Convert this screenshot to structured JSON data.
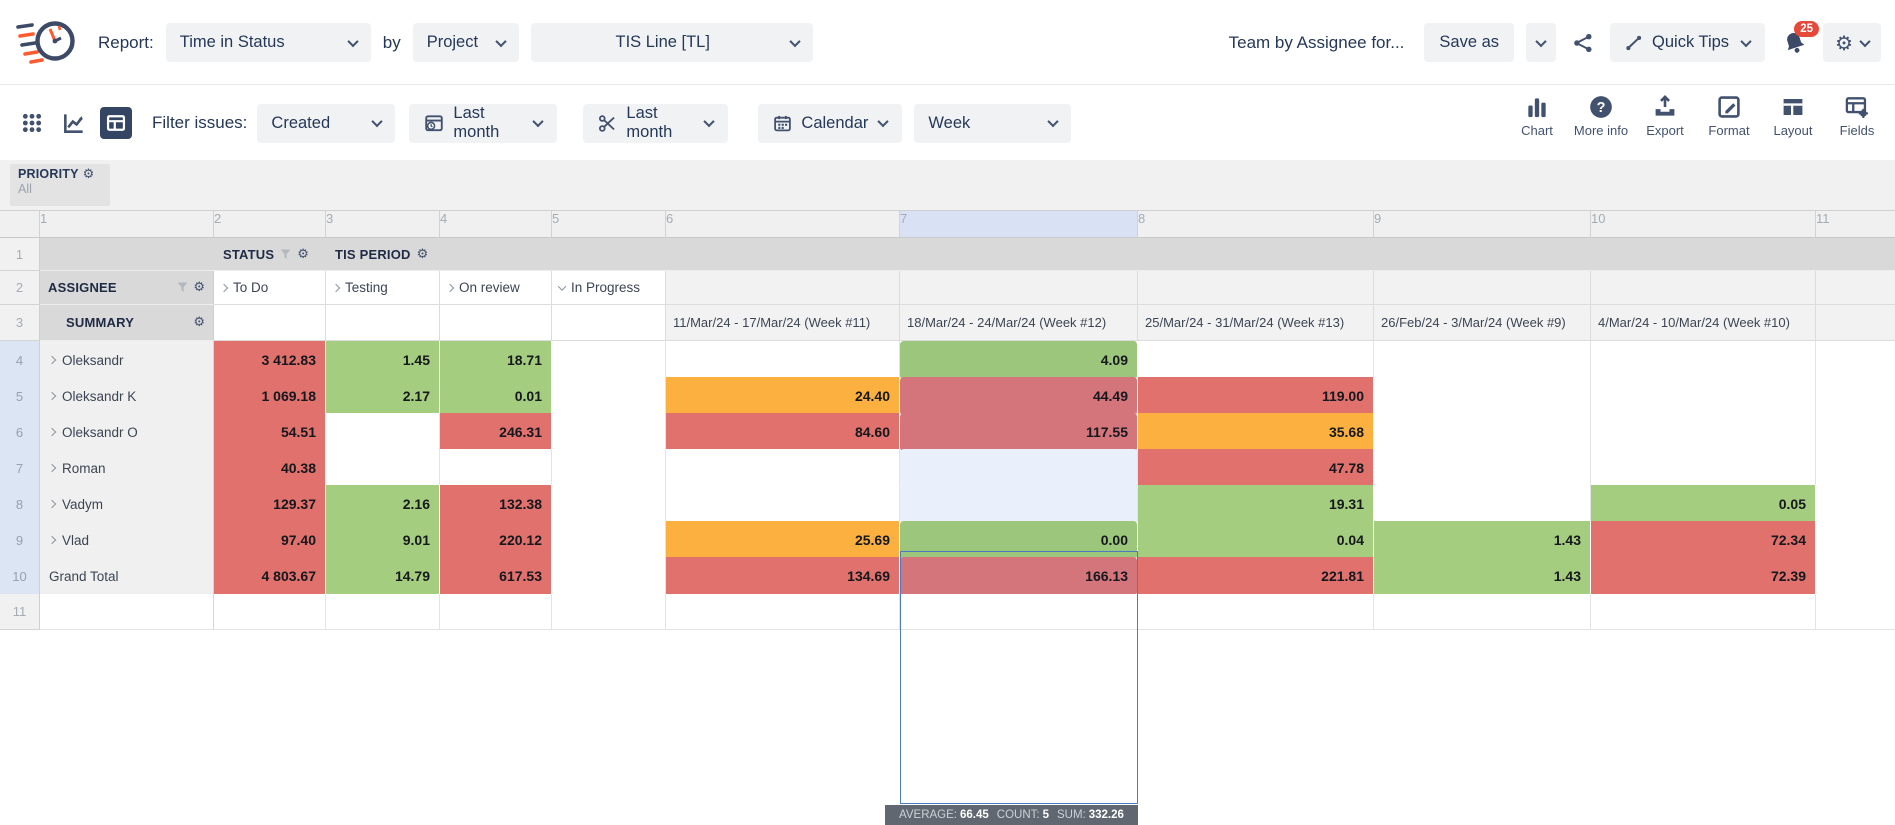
{
  "header": {
    "report_label": "Report:",
    "report_type": "Time in Status",
    "by_label": "by",
    "group_by": "Project",
    "project": "TIS Line [TL]",
    "report_title": "Team by Assignee for...",
    "save_as_label": "Save as",
    "quick_tips_label": "Quick Tips",
    "notification_count": "25"
  },
  "toolbar": {
    "filter_issues_label": "Filter issues:",
    "issue_date_field": "Created",
    "date_range": "Last month",
    "trim_range": "Last month",
    "calendar_label": "Calendar",
    "period": "Week",
    "actions": [
      {
        "label": "Chart"
      },
      {
        "label": "More info"
      },
      {
        "label": "Export"
      },
      {
        "label": "Format"
      },
      {
        "label": "Layout"
      },
      {
        "label": "Fields"
      }
    ]
  },
  "filters_panel": {
    "field": "PRIORITY",
    "value": "All"
  },
  "grid": {
    "column_numbers": [
      "1",
      "2",
      "3",
      "4",
      "5",
      "6",
      "7",
      "8",
      "9",
      "10",
      "11"
    ],
    "selected_column_index": 6,
    "header_rows": {
      "r1_num": "1",
      "status_label": "STATUS",
      "tis_period_label": "TIS PERIOD",
      "r2_num": "2",
      "assignee_label": "ASSIGNEE",
      "statuses": [
        "To Do",
        "Testing",
        "On review",
        "In Progress"
      ],
      "r3_num": "3",
      "summary_label": "SUMMARY",
      "periods": [
        "11/Mar/24 - 17/Mar/24 (Week #11)",
        "18/Mar/24 - 24/Mar/24 (Week #12)",
        "25/Mar/24 - 31/Mar/24 (Week #13)",
        "26/Feb/24 - 3/Mar/24 (Week #9)",
        "4/Mar/24 - 10/Mar/24 (Week #10)"
      ]
    },
    "rows": [
      {
        "num": "4",
        "name": "Oleksandr",
        "expandable": true,
        "hl": true,
        "cells": [
          [
            "3 412.83",
            "red"
          ],
          [
            "1.45",
            "green"
          ],
          [
            "18.71",
            "green"
          ],
          [
            "",
            ""
          ],
          [
            "",
            ""
          ],
          [
            "4.09",
            "green sel"
          ],
          [
            "",
            ""
          ],
          [
            "",
            ""
          ],
          [
            "",
            ""
          ]
        ]
      },
      {
        "num": "5",
        "name": "Oleksandr K",
        "expandable": true,
        "hl": true,
        "cells": [
          [
            "1 069.18",
            "red"
          ],
          [
            "2.17",
            "green"
          ],
          [
            "0.01",
            "green"
          ],
          [
            "",
            ""
          ],
          [
            "24.40",
            "orange"
          ],
          [
            "44.49",
            "red sel"
          ],
          [
            "119.00",
            "red"
          ],
          [
            "",
            ""
          ],
          [
            "",
            ""
          ]
        ]
      },
      {
        "num": "6",
        "name": "Oleksandr O",
        "expandable": true,
        "hl": true,
        "cells": [
          [
            "54.51",
            "red"
          ],
          [
            "",
            ""
          ],
          [
            "246.31",
            "red"
          ],
          [
            "",
            ""
          ],
          [
            "84.60",
            "red"
          ],
          [
            "117.55",
            "red sel"
          ],
          [
            "35.68",
            "orange"
          ],
          [
            "",
            ""
          ],
          [
            "",
            ""
          ]
        ]
      },
      {
        "num": "7",
        "name": "Roman",
        "expandable": true,
        "hl": true,
        "cells": [
          [
            "40.38",
            "red"
          ],
          [
            "",
            ""
          ],
          [
            "",
            ""
          ],
          [
            "",
            ""
          ],
          [
            "",
            ""
          ],
          [
            "",
            "sel"
          ],
          [
            "47.78",
            "red"
          ],
          [
            "",
            ""
          ],
          [
            "",
            ""
          ]
        ]
      },
      {
        "num": "8",
        "name": "Vadym",
        "expandable": true,
        "hl": true,
        "cells": [
          [
            "129.37",
            "red"
          ],
          [
            "2.16",
            "green"
          ],
          [
            "132.38",
            "red"
          ],
          [
            "",
            ""
          ],
          [
            "",
            ""
          ],
          [
            "",
            "sel"
          ],
          [
            "19.31",
            "green"
          ],
          [
            "",
            ""
          ],
          [
            "0.05",
            "green"
          ]
        ]
      },
      {
        "num": "9",
        "name": "Vlad",
        "expandable": true,
        "hl": true,
        "cells": [
          [
            "97.40",
            "red"
          ],
          [
            "9.01",
            "green"
          ],
          [
            "220.12",
            "red"
          ],
          [
            "",
            ""
          ],
          [
            "25.69",
            "orange"
          ],
          [
            "0.00",
            "green sel"
          ],
          [
            "0.04",
            "green"
          ],
          [
            "1.43",
            "green"
          ],
          [
            "72.34",
            "red"
          ]
        ]
      },
      {
        "num": "10",
        "name": "Grand Total",
        "expandable": false,
        "hl": true,
        "cells": [
          [
            "4 803.67",
            "red"
          ],
          [
            "14.79",
            "green"
          ],
          [
            "617.53",
            "red"
          ],
          [
            "",
            ""
          ],
          [
            "134.69",
            "red"
          ],
          [
            "166.13",
            "red sel"
          ],
          [
            "221.81",
            "red"
          ],
          [
            "1.43",
            "green"
          ],
          [
            "72.39",
            "red"
          ]
        ]
      },
      {
        "num": "11",
        "name": "",
        "expandable": false,
        "hl": false,
        "cells": [
          [
            "",
            ""
          ],
          [
            "",
            ""
          ],
          [
            "",
            ""
          ],
          [
            "",
            ""
          ],
          [
            "",
            ""
          ],
          [
            "",
            ""
          ],
          [
            "",
            ""
          ],
          [
            "",
            ""
          ],
          [
            "",
            ""
          ]
        ]
      }
    ],
    "selection_stats": {
      "average_label": "AVERAGE:",
      "average": "66.45",
      "count_label": "COUNT:",
      "count": "5",
      "sum_label": "SUM:",
      "sum": "332.26"
    }
  },
  "colors": {
    "cell_red": "#e0716c",
    "cell_green": "#a5cd7f",
    "cell_orange": "#fbb03f",
    "selection_blue": "#4a7cc2",
    "accent_orange": "#ff5a30",
    "navy": "#42526e",
    "badge_red": "#e5493a"
  }
}
